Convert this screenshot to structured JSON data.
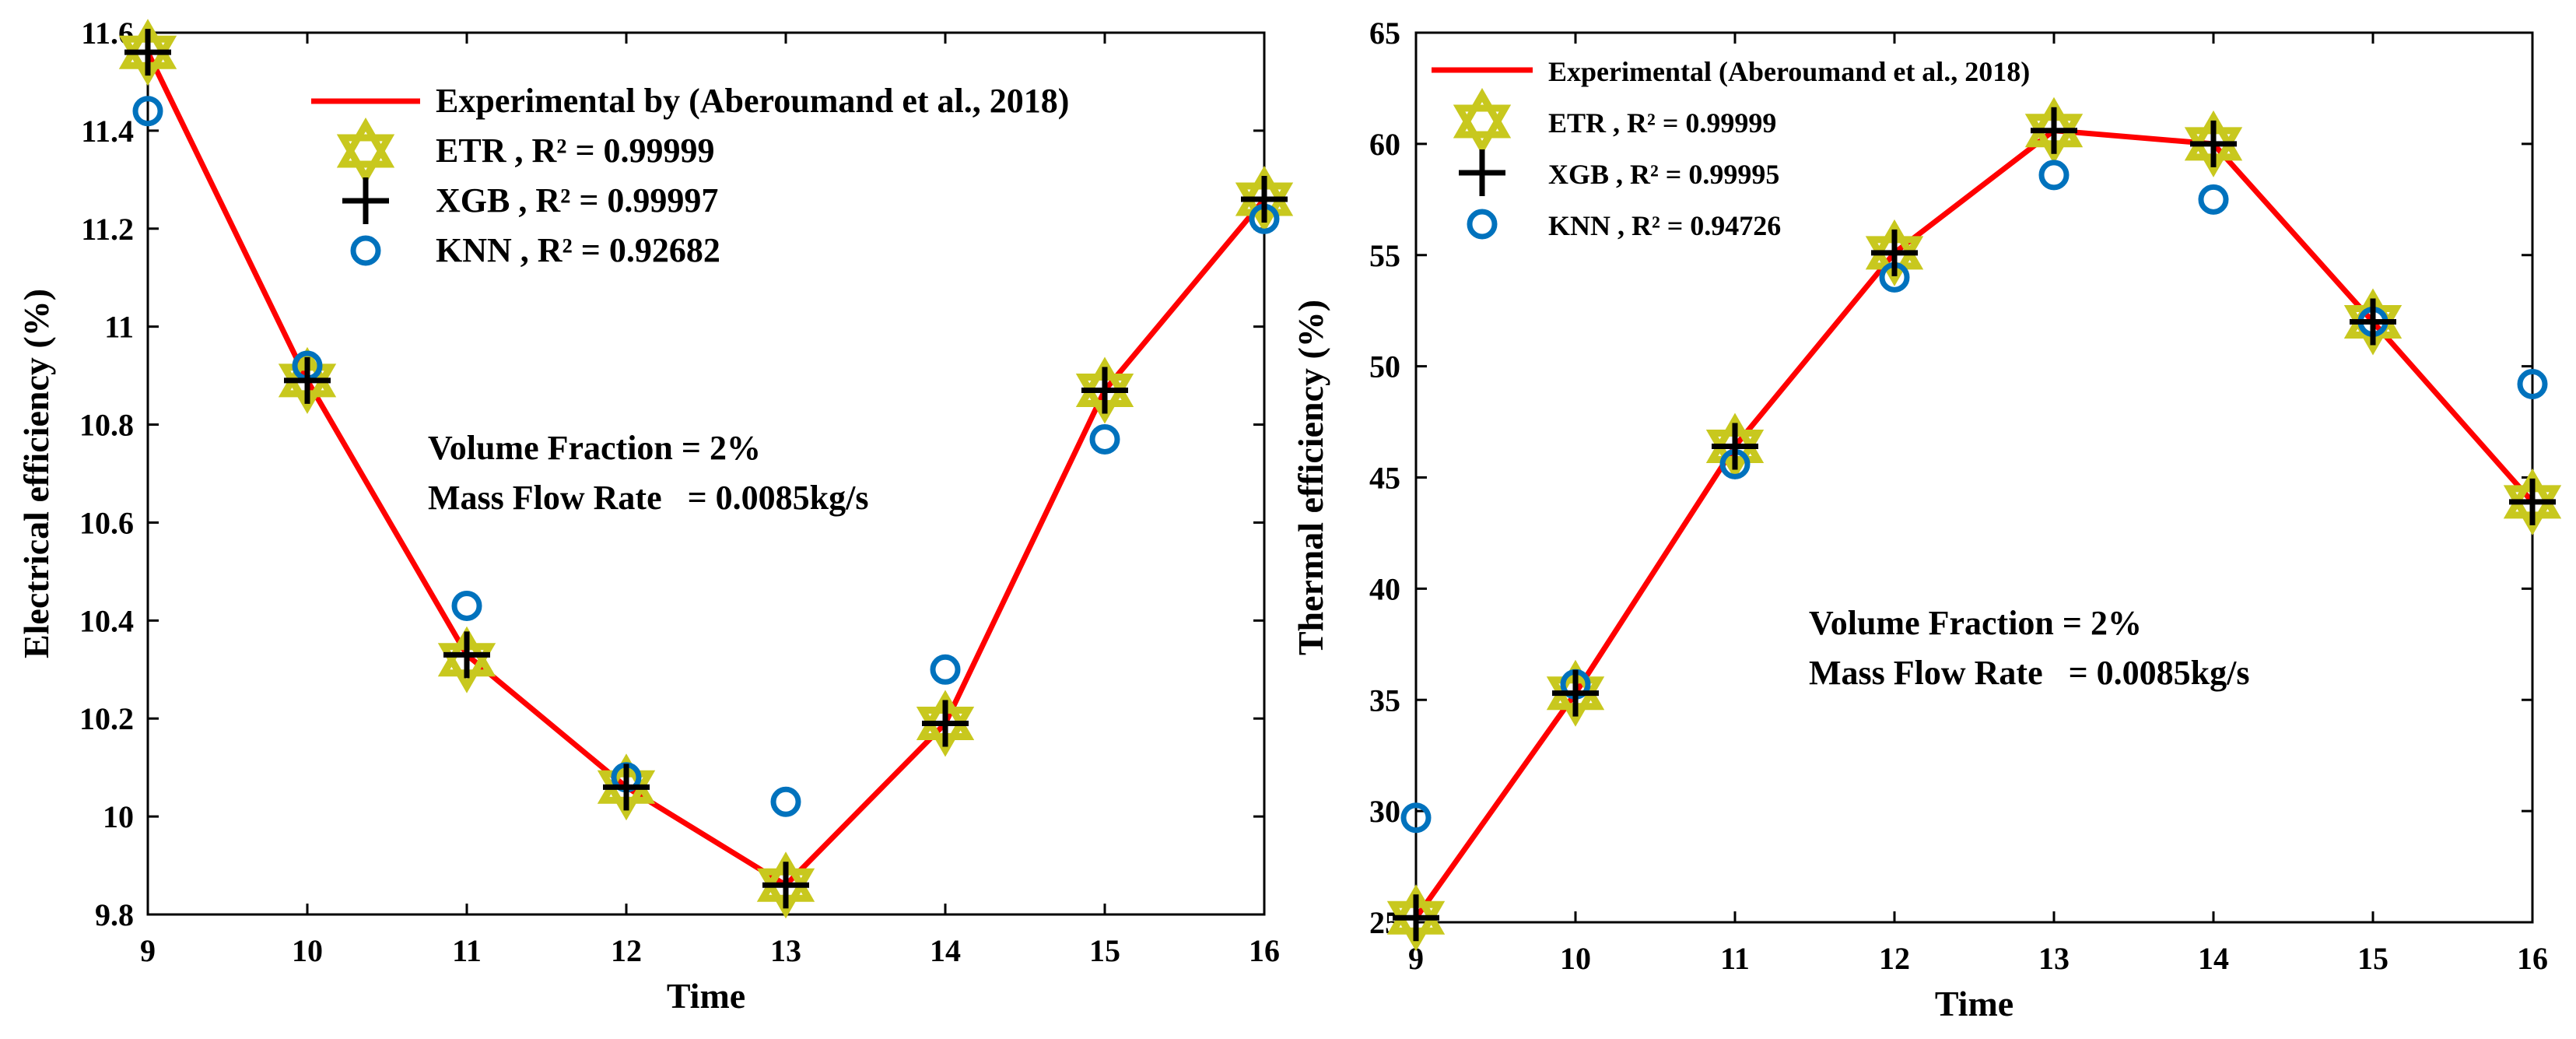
{
  "colors": {
    "experimental": "#ff0000",
    "etr": "#c8c81e",
    "xgb": "#000000",
    "knn": "#0072bd",
    "axis": "#000000"
  },
  "chart_data": [
    {
      "type": "line",
      "title": "",
      "xlabel": "Time",
      "ylabel": "Electrical efficiency (%)",
      "xlim": [
        9,
        16
      ],
      "ylim": [
        9.8,
        11.6
      ],
      "xticks": [
        9,
        10,
        11,
        12,
        13,
        14,
        15,
        16
      ],
      "yticks": [
        9.8,
        10,
        10.2,
        10.4,
        10.6,
        10.8,
        11,
        11.2,
        11.4,
        11.6
      ],
      "ytick_labels": [
        "9.8",
        "10",
        "10.2",
        "10.4",
        "10.6",
        "10.8",
        "11",
        "11.2",
        "11.4",
        "11.6"
      ],
      "x": [
        9,
        10,
        11,
        12,
        13,
        14,
        15,
        16
      ],
      "series": [
        {
          "name": "Experimental by (Aberoumand et al., 2018)",
          "marker": "line",
          "values": [
            11.56,
            10.89,
            10.33,
            10.06,
            9.86,
            10.19,
            10.87,
            11.26
          ]
        },
        {
          "name": "ETR , R² = 0.99999",
          "marker": "hexagram",
          "values": [
            11.56,
            10.89,
            10.32,
            10.06,
            9.86,
            10.19,
            10.87,
            11.26
          ]
        },
        {
          "name": "XGB , R² = 0.99997",
          "marker": "plus",
          "values": [
            11.56,
            10.89,
            10.33,
            10.06,
            9.86,
            10.19,
            10.87,
            11.26
          ]
        },
        {
          "name": "KNN , R² = 0.92682",
          "marker": "circle",
          "values": [
            11.44,
            10.92,
            10.43,
            10.08,
            10.03,
            10.3,
            10.77,
            11.22
          ]
        }
      ],
      "legend_position": "top-center",
      "annotations": [
        "Volume Fraction = 2%",
        "Mass Flow Rate   = 0.0085kg/s"
      ]
    },
    {
      "type": "line",
      "title": "",
      "xlabel": "Time",
      "ylabel": "Thermal efficiency (%)",
      "xlim": [
        9,
        16
      ],
      "ylim": [
        25,
        65
      ],
      "xticks": [
        9,
        10,
        11,
        12,
        13,
        14,
        15,
        16
      ],
      "yticks": [
        25,
        30,
        35,
        40,
        45,
        50,
        55,
        60,
        65
      ],
      "ytick_labels": [
        "25",
        "30",
        "35",
        "40",
        "45",
        "50",
        "55",
        "60",
        "65"
      ],
      "x": [
        9,
        10,
        11,
        12,
        13,
        14,
        15,
        16
      ],
      "series": [
        {
          "name": "Experimental (Aberoumand et al., 2018)",
          "marker": "line",
          "values": [
            25.2,
            35.3,
            46.4,
            55.1,
            60.6,
            60.0,
            52.0,
            43.9
          ]
        },
        {
          "name": "ETR , R² = 0.99999",
          "marker": "hexagram",
          "values": [
            25.2,
            35.3,
            46.4,
            55.1,
            60.6,
            60.0,
            52.0,
            43.9
          ]
        },
        {
          "name": "XGB , R² = 0.99995",
          "marker": "plus",
          "values": [
            25.2,
            35.3,
            46.4,
            55.1,
            60.6,
            60.0,
            52.0,
            43.9
          ]
        },
        {
          "name": "KNN , R² = 0.94726",
          "marker": "circle",
          "values": [
            29.7,
            35.7,
            45.6,
            54.0,
            58.6,
            57.5,
            52.0,
            49.2
          ]
        }
      ],
      "legend_position": "top-left",
      "annotations": [
        "Volume Fraction = 2%",
        "Mass Flow Rate   = 0.0085kg/s"
      ]
    }
  ]
}
